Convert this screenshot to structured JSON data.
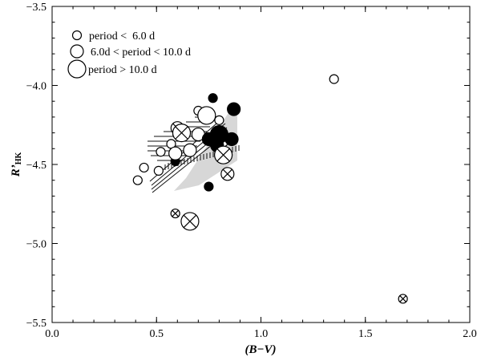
{
  "chart_data": {
    "type": "scatter",
    "xlabel": "(B−V)",
    "ylabel": {
      "main": "R’",
      "sub": "HK"
    },
    "xlim": [
      0.0,
      2.0
    ],
    "ylim": [
      -5.5,
      -3.5
    ],
    "x_ticks": [
      {
        "value": 0.0,
        "label": "0.0"
      },
      {
        "value": 0.5,
        "label": "0.5"
      },
      {
        "value": 1.0,
        "label": "1.0"
      },
      {
        "value": 1.5,
        "label": "1.5"
      },
      {
        "value": 2.0,
        "label": "2.0"
      }
    ],
    "y_ticks": [
      {
        "value": -3.5,
        "label": "−3.5"
      },
      {
        "value": -4.0,
        "label": "−4.0"
      },
      {
        "value": -4.5,
        "label": "−4.5"
      },
      {
        "value": -5.0,
        "label": "−5.0"
      },
      {
        "value": -5.5,
        "label": "−5.5"
      }
    ],
    "legend": {
      "placement": "top-left",
      "entries": [
        {
          "label": "period <  6.0 d",
          "size": "small"
        },
        {
          "label": "6.0d < period < 10.0 d",
          "size": "medium"
        },
        {
          "label": "period > 10.0 d",
          "size": "large"
        }
      ]
    },
    "points": [
      {
        "x": 1.35,
        "y": -3.96,
        "size": "small",
        "style": "open"
      },
      {
        "x": 0.41,
        "y": -4.6,
        "size": "small",
        "style": "open"
      },
      {
        "x": 0.44,
        "y": -4.52,
        "size": "small",
        "style": "open"
      },
      {
        "x": 0.51,
        "y": -4.54,
        "size": "small",
        "style": "open"
      },
      {
        "x": 0.52,
        "y": -4.42,
        "size": "small",
        "style": "open"
      },
      {
        "x": 0.57,
        "y": -4.37,
        "size": "small",
        "style": "open"
      },
      {
        "x": 0.59,
        "y": -4.48,
        "size": "small",
        "style": "filled"
      },
      {
        "x": 0.6,
        "y": -4.31,
        "size": "small",
        "style": "open"
      },
      {
        "x": 0.7,
        "y": -4.16,
        "size": "small",
        "style": "open"
      },
      {
        "x": 0.75,
        "y": -4.64,
        "size": "small",
        "style": "filled"
      },
      {
        "x": 0.77,
        "y": -4.08,
        "size": "small",
        "style": "filled"
      },
      {
        "x": 0.8,
        "y": -4.22,
        "size": "small",
        "style": "open"
      },
      {
        "x": 0.82,
        "y": -4.36,
        "size": "small",
        "style": "open"
      },
      {
        "x": 0.59,
        "y": -4.81,
        "size": "small",
        "style": "crossed"
      },
      {
        "x": 1.68,
        "y": -5.35,
        "size": "small",
        "style": "crossed"
      },
      {
        "x": 0.59,
        "y": -4.43,
        "size": "medium",
        "style": "open"
      },
      {
        "x": 0.66,
        "y": -4.41,
        "size": "medium",
        "style": "open"
      },
      {
        "x": 0.7,
        "y": -4.31,
        "size": "medium",
        "style": "open"
      },
      {
        "x": 0.75,
        "y": -4.34,
        "size": "medium",
        "style": "filled"
      },
      {
        "x": 0.79,
        "y": -4.31,
        "size": "medium",
        "style": "open"
      },
      {
        "x": 0.79,
        "y": -4.38,
        "size": "medium",
        "style": "filled"
      },
      {
        "x": 0.87,
        "y": -4.15,
        "size": "medium",
        "style": "filled"
      },
      {
        "x": 0.86,
        "y": -4.34,
        "size": "medium",
        "style": "filled"
      },
      {
        "x": 0.6,
        "y": -4.27,
        "size": "medium",
        "style": "crossed"
      },
      {
        "x": 0.84,
        "y": -4.56,
        "size": "medium",
        "style": "crossed"
      },
      {
        "x": 0.74,
        "y": -4.19,
        "size": "large",
        "style": "open"
      },
      {
        "x": 0.8,
        "y": -4.31,
        "size": "large",
        "style": "filled"
      },
      {
        "x": 0.62,
        "y": -4.3,
        "size": "large",
        "style": "crossed"
      },
      {
        "x": 0.82,
        "y": -4.44,
        "size": "large",
        "style": "crossed"
      },
      {
        "x": 0.66,
        "y": -4.86,
        "size": "large",
        "style": "crossed"
      }
    ]
  }
}
